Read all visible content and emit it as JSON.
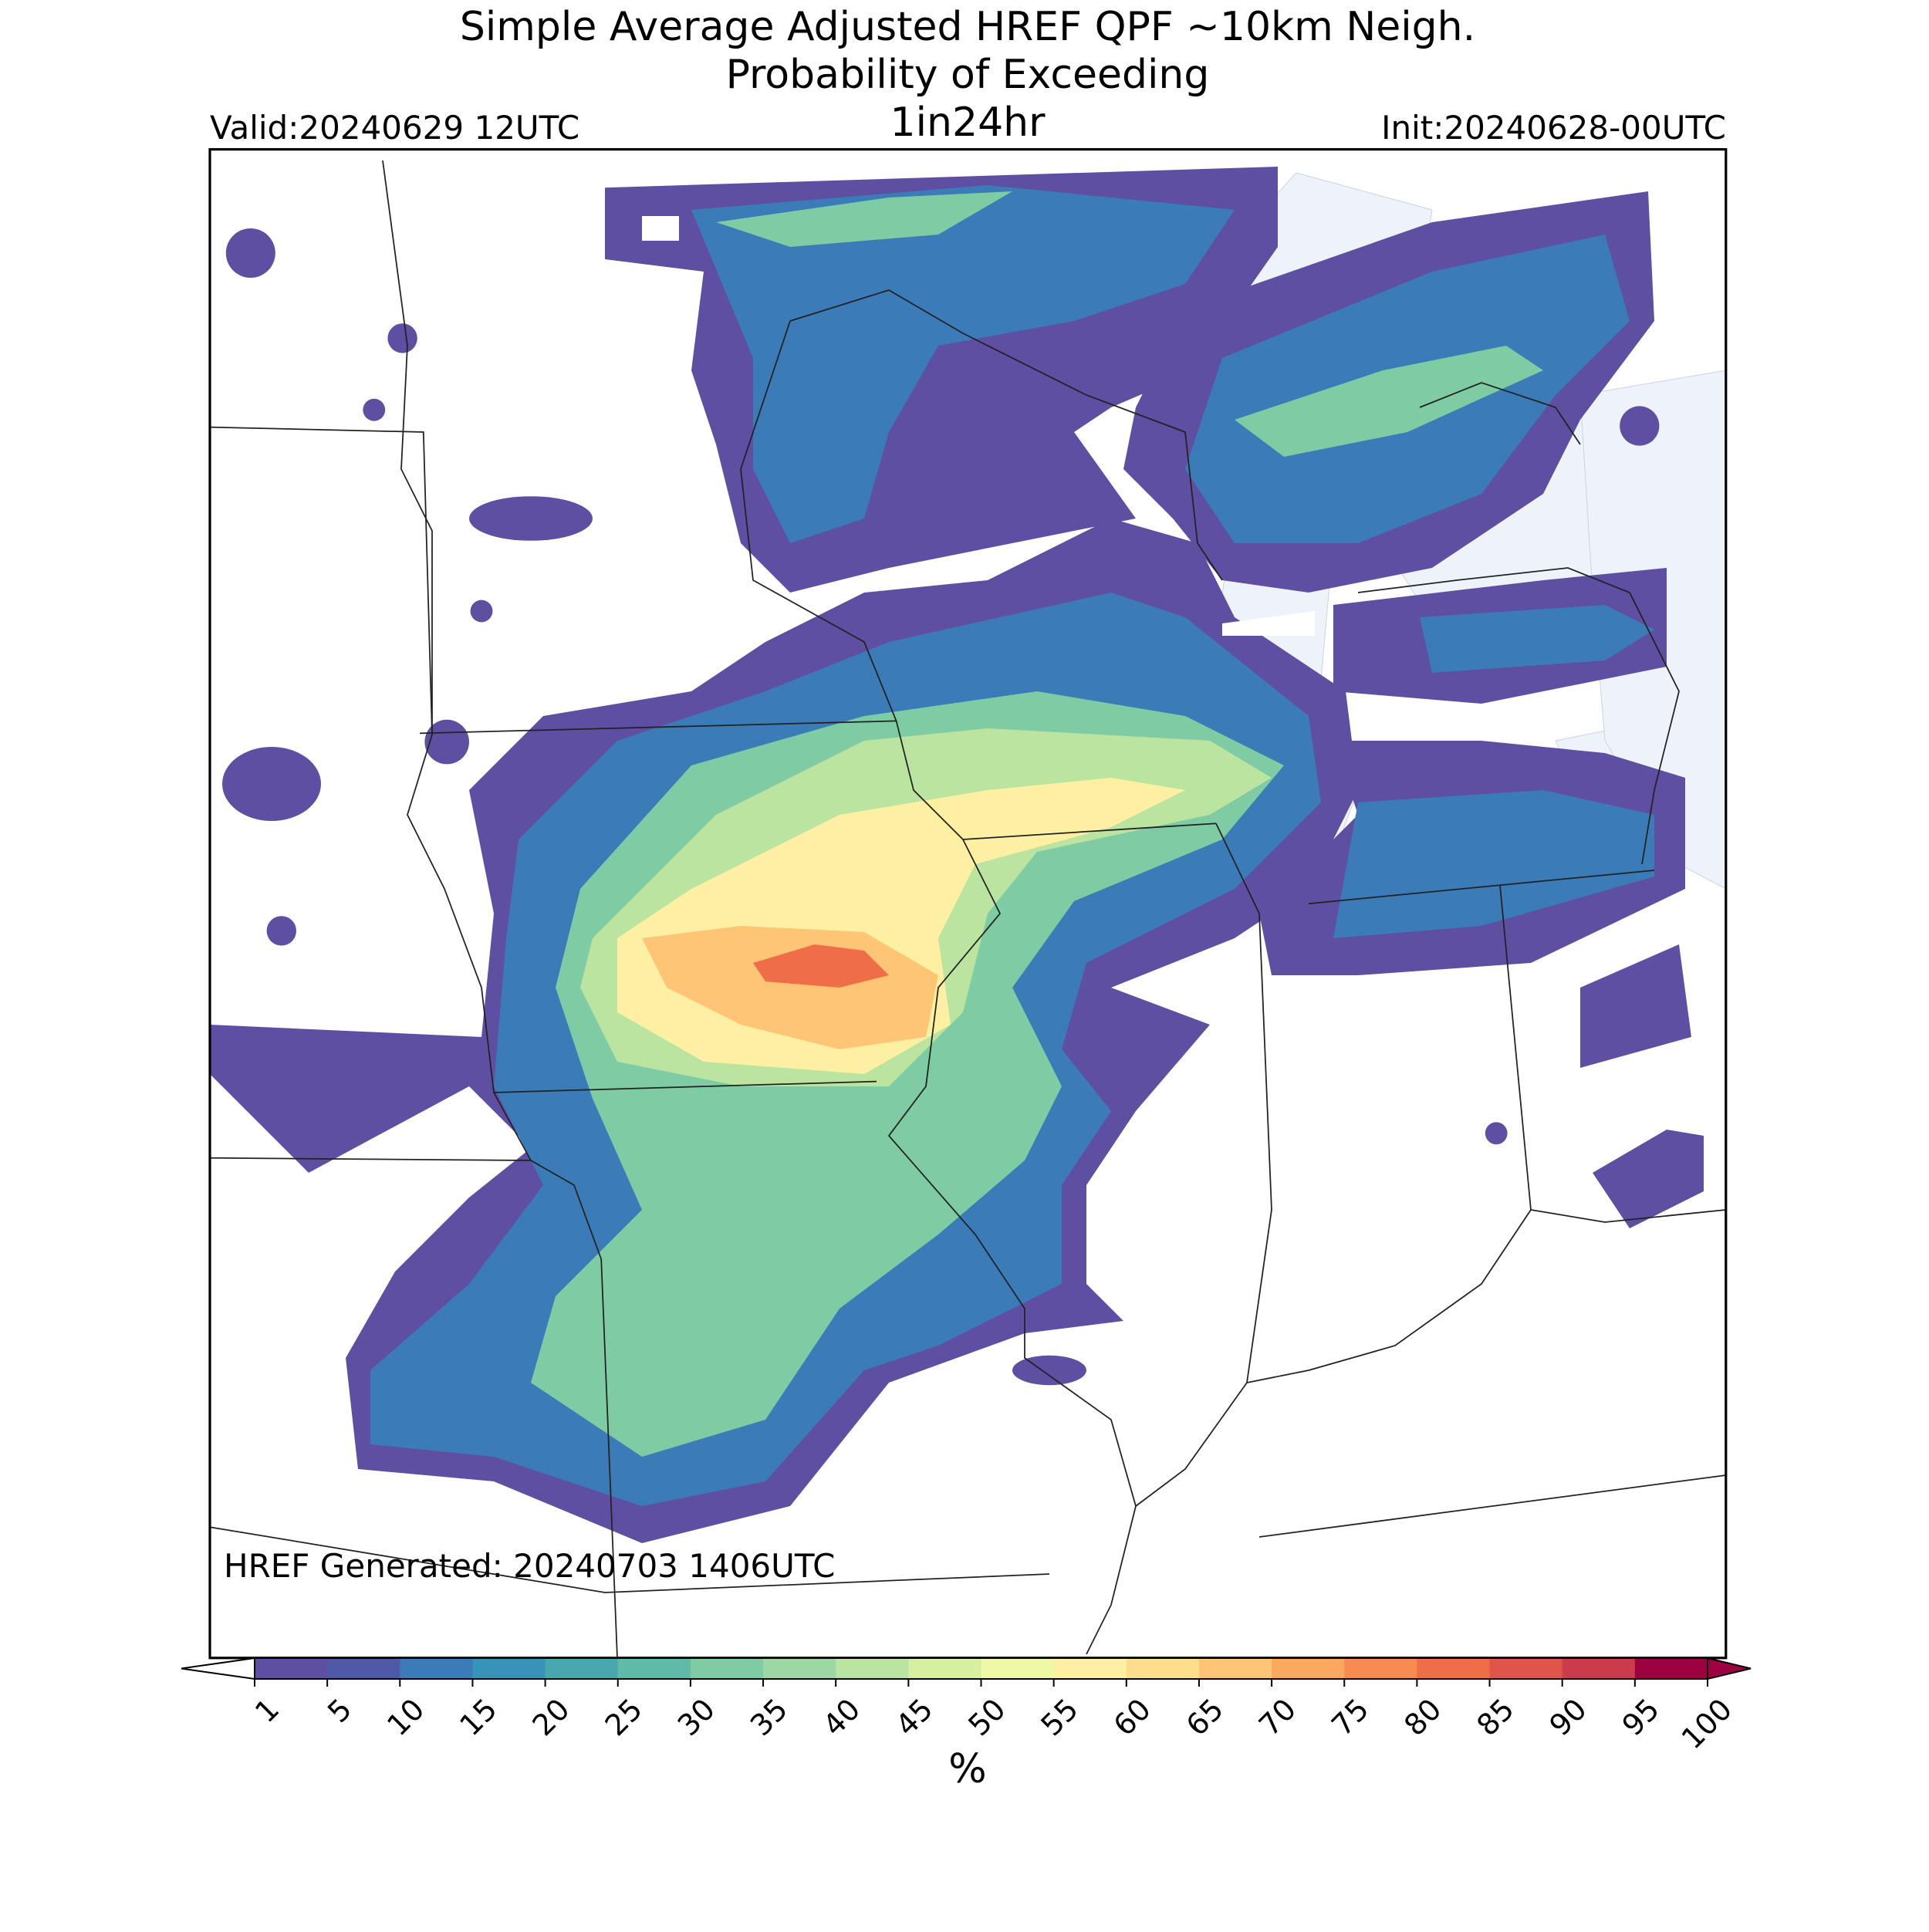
{
  "title": [
    "Simple Average Adjusted HREF QPF ~10km Neigh.",
    "Probability of Exceeding",
    "1in24hr"
  ],
  "valid": "Valid:20240629 12UTC",
  "init": "Init:20240628-00UTC",
  "generated": "HREF Generated: 20240703 1406UTC",
  "colorbar": {
    "ticks": [
      1,
      5,
      10,
      15,
      20,
      25,
      30,
      35,
      40,
      45,
      50,
      55,
      60,
      65,
      70,
      75,
      80,
      85,
      90,
      95,
      100
    ],
    "colors": [
      "#5e4fa2",
      "#5058a8",
      "#3b7cb8",
      "#3794b8",
      "#47a9af",
      "#5fbba7",
      "#7fcba4",
      "#9dd8a4",
      "#bbe4a0",
      "#d7efa0",
      "#eef8a6",
      "#fdf0a3",
      "#fedd8c",
      "#fec574",
      "#fca85f",
      "#f88b51",
      "#ef6e47",
      "#e0544a",
      "#cc3b4c",
      "#9e0142"
    ],
    "under_color": "#ffffff",
    "over_color": "#9e0142",
    "label": "%"
  }
}
